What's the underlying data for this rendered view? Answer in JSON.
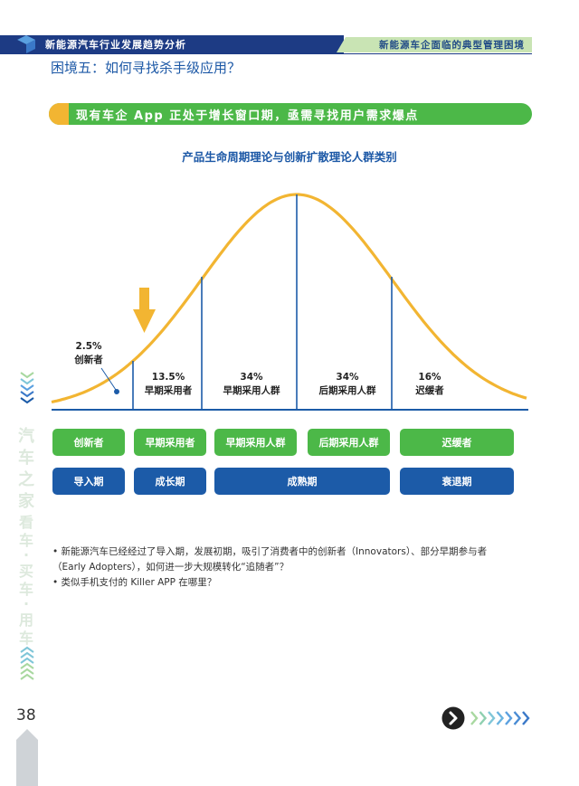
{
  "header": {
    "left_title": "新能源汽车行业发展趋势分析",
    "right_title": "新能源车企面临的典型管理困境"
  },
  "page_title": "困境五：如何寻找杀手级应用？",
  "banner": "现有车企 App 正处于增长窗口期，亟需寻找用户需求爆点",
  "chart_title": "产品生命周期理论与创新扩散理论人群类别",
  "chart_data": {
    "type": "area",
    "title": "产品生命周期理论与创新扩散理论人群类别",
    "segments": [
      {
        "name": "创新者",
        "percent": 2.5,
        "label": "2.5%"
      },
      {
        "name": "早期采用者",
        "percent": 13.5,
        "label": "13.5%"
      },
      {
        "name": "早期采用人群",
        "percent": 34,
        "label": "34%"
      },
      {
        "name": "后期采用人群",
        "percent": 34,
        "label": "34%"
      },
      {
        "name": "迟缓者",
        "percent": 16,
        "label": "16%"
      }
    ],
    "stages": [
      "导入期",
      "成长期",
      "成熟期",
      "衰退期"
    ],
    "colors": {
      "curve": "#f2b532",
      "axis": "#1c5ba8",
      "arrow": "#f2b532"
    }
  },
  "adopter_boxes": [
    "创新者",
    "早期采用者",
    "早期采用人群",
    "后期采用人群",
    "迟缓者"
  ],
  "stage_boxes": [
    "导入期",
    "成长期",
    "成熟期",
    "衰退期"
  ],
  "bullets": [
    "新能源汽车已经经过了导入期，发展初期，吸引了消费者中的创新者（Innovators）、部分早期参与者",
    "（Early Adopters），如何进一步大规模转化“追随者”？",
    "类似手机支付的 Killer APP 在哪里？"
  ],
  "sidebar_text": [
    "汽",
    "车",
    "之",
    "家",
    "看",
    "车",
    "·",
    "买",
    "车",
    "·",
    "用",
    "车"
  ],
  "page_number": "38",
  "colors": {
    "navy": "#1d3b84",
    "blue": "#1c5ba8",
    "green": "#4cb848",
    "orange": "#f2b532"
  }
}
